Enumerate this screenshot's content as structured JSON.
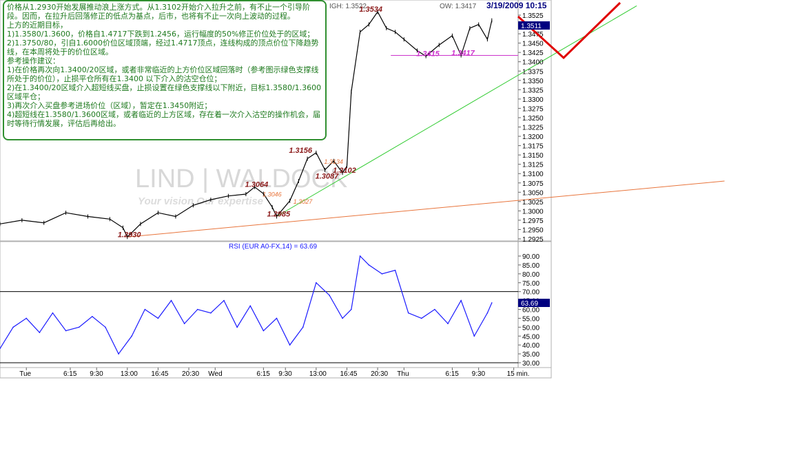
{
  "header": {
    "high_label": "IGH: 1.3522",
    "low_label": "OW: 1.3417",
    "datetime": "3/19/2009 10:15",
    "last_price": "1.3511"
  },
  "watermark": {
    "brand": "LIND | WALDOCK",
    "tagline": "Your vision Our expertise"
  },
  "colors": {
    "price": "#000000",
    "support_line": "#33cc33",
    "trend_line": "#e8743b",
    "projection": "#e00000",
    "magenta": "#cc33cc",
    "note_text": "#1e7a1e",
    "rsi": "#1a1aff",
    "price_annotation": "#8b1a1a"
  },
  "note": {
    "lines": [
      "价格从1.2930开始发展推动浪上涨方式。从1.3102开始介入拉升之前，有不止一个引导阶段。因而，在拉升后回落修正的低点为基点，后市，也将有不止一次向上波动的过程。",
      "上方的近期目标，",
      "1)1.3580/1.3600，价格自1.4717下跌到1.2456，运行幅度的50%修正价位处于的区域；",
      "2)1.3750/80，引自1.6000价位区域顶端，经过1.4717顶点，连线构成的顶点价位下降趋势线，在本周将处于的价位区域。",
      "参考操作建议：",
      "1)在价格再次向1.3400/20区域，或者非常临近的上方价位区域回落时（参考图示绿色支撑线所处于的价位），止损平仓所有在1.3400 以下介入的沽空仓位；",
      "2)在1.3400/20区域介入超短线买盘，止损设置在绿色支撑线以下附近，目标1.3580/1.3600区域平仓；",
      "3)再次介入买盘参考进场价位（区域），暂定在1.3450附近；",
      "4)超短线在1.3580/1.3600区域，或者临近的上方区域，存在着一次介入沽空的操作机会，届时等待行情发展，评估后再给出。"
    ]
  },
  "price_annotations": [
    {
      "text": "1.3534",
      "x": 84,
      "y": 1.3534
    },
    {
      "text": "1.3415",
      "x": 97,
      "y": 1.3415
    },
    {
      "text": "1.3417",
      "x": 105,
      "y": 1.3417
    },
    {
      "text": "1.3156",
      "x": 68,
      "y": 1.3156
    },
    {
      "text": "1.3134",
      "x": 76,
      "y": 1.3134
    },
    {
      "text": "1.3064",
      "x": 58,
      "y": 1.3064
    },
    {
      "text": "1.3046",
      "x": 62,
      "y": 1.3046
    },
    {
      "text": "1.3102",
      "x": 78,
      "y": 1.3102
    },
    {
      "text": "1.3087",
      "x": 74,
      "y": 1.3087
    },
    {
      "text": "1.3027",
      "x": 69,
      "y": 1.3027
    },
    {
      "text": "1.2985",
      "x": 63,
      "y": 1.2985
    },
    {
      "text": "1.2930",
      "x": 29,
      "y": 1.293
    }
  ],
  "chart_data": [
    {
      "type": "line",
      "title": "",
      "x": [
        0,
        5,
        10,
        15,
        20,
        25,
        28,
        29,
        32,
        36,
        40,
        44,
        48,
        52,
        56,
        58,
        60,
        62,
        63,
        66,
        68,
        70,
        72,
        74,
        76,
        78,
        79,
        80,
        82,
        84,
        86,
        88,
        90,
        92,
        95,
        97,
        100,
        103,
        105,
        107,
        109,
        111,
        112
      ],
      "series": [
        {
          "values": [
            1.2965,
            1.2975,
            1.2968,
            1.2995,
            1.2985,
            1.2978,
            1.2955,
            1.293,
            1.2965,
            1.2995,
            1.2985,
            1.3015,
            1.303,
            1.304,
            1.3045,
            1.3064,
            1.3046,
            1.301,
            1.2985,
            1.3027,
            1.308,
            1.314,
            1.3156,
            1.311,
            1.3134,
            1.3102,
            1.312,
            1.332,
            1.348,
            1.35,
            1.3534,
            1.349,
            1.348,
            1.346,
            1.343,
            1.3415,
            1.3445,
            1.347,
            1.3417,
            1.349,
            1.35,
            1.346,
            1.3511
          ]
        }
      ],
      "ylim": [
        1.2925,
        1.3525
      ],
      "y_ticks": [
        "1.3525",
        "1.3500",
        "1.3475",
        "1.3450",
        "1.3425",
        "1.3400",
        "1.3375",
        "1.3350",
        "1.3325",
        "1.3300",
        "1.3275",
        "1.3250",
        "1.3225",
        "1.3200",
        "1.3175",
        "1.3150",
        "1.3125",
        "1.3100",
        "1.3075",
        "1.3050",
        "1.3025",
        "1.3000",
        "1.2975",
        "1.2950",
        "1.2925"
      ],
      "x_tick_labels": [
        {
          "label": "Tue",
          "x": 6
        },
        {
          "label": "6:15",
          "x": 16
        },
        {
          "label": "9:30",
          "x": 22
        },
        {
          "label": "13:00",
          "x": 29
        },
        {
          "label": "16:45",
          "x": 36
        },
        {
          "label": "20:30",
          "x": 43
        },
        {
          "label": "Wed",
          "x": 49
        },
        {
          "label": "6:15",
          "x": 60
        },
        {
          "label": "9:30",
          "x": 65
        },
        {
          "label": "13:00",
          "x": 72
        },
        {
          "label": "16:45",
          "x": 79
        },
        {
          "label": "20:30",
          "x": 86
        },
        {
          "label": "Thu",
          "x": 92
        },
        {
          "label": "6:15",
          "x": 103
        },
        {
          "label": "9:30",
          "x": 109
        },
        {
          "label": "15 min.",
          "x": 117
        }
      ],
      "overlays": [
        {
          "name": "green support",
          "x": [
            63,
            145
          ],
          "y": [
            1.2985,
            1.355
          ]
        },
        {
          "name": "orange trend",
          "x": [
            29,
            165
          ],
          "y": [
            1.293,
            1.308
          ]
        },
        {
          "name": "magenta level",
          "x": [
            89,
            118
          ],
          "y": [
            1.3417,
            1.3417
          ]
        }
      ]
    },
    {
      "type": "line",
      "title": "RSI (EUR A0-FX,14) = 63.69",
      "x": [
        0,
        3,
        6,
        9,
        12,
        15,
        18,
        21,
        24,
        27,
        30,
        33,
        36,
        39,
        42,
        45,
        48,
        51,
        54,
        57,
        60,
        63,
        66,
        69,
        72,
        75,
        78,
        80,
        82,
        84,
        87,
        90,
        93,
        96,
        99,
        102,
        105,
        108,
        111,
        112
      ],
      "series": [
        {
          "values": [
            38,
            50,
            55,
            47,
            58,
            48,
            50,
            56,
            50,
            35,
            45,
            60,
            55,
            65,
            52,
            60,
            58,
            65,
            50,
            62,
            48,
            55,
            40,
            50,
            75,
            68,
            55,
            60,
            90,
            85,
            80,
            82,
            58,
            55,
            60,
            52,
            65,
            45,
            58,
            63.69
          ]
        }
      ],
      "ylim": [
        30,
        90
      ],
      "y_ticks": [
        "90.00",
        "85.00",
        "80.00",
        "75.00",
        "70.00",
        "65.00",
        "60.00",
        "55.00",
        "50.00",
        "45.00",
        "40.00",
        "35.00",
        "30.00"
      ],
      "reference_lines": [
        70,
        30
      ],
      "last_value_label": "63.69"
    }
  ]
}
